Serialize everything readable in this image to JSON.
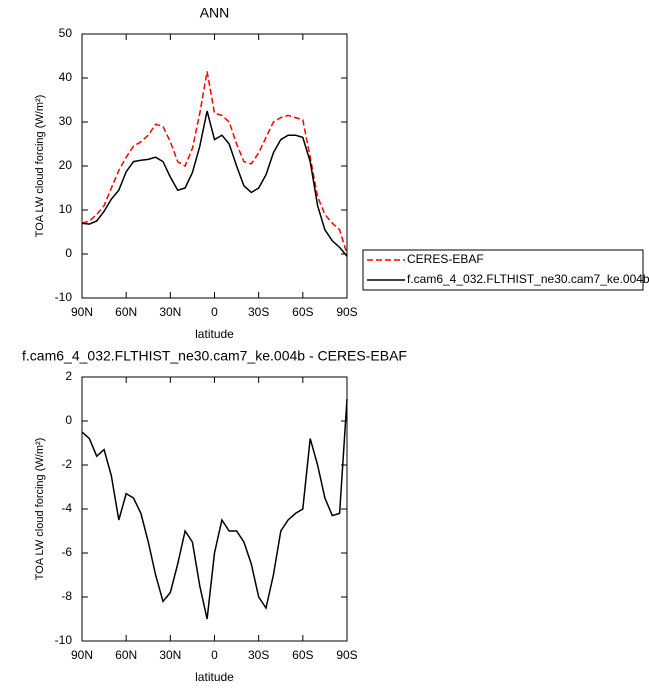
{
  "chart_data": [
    {
      "type": "line",
      "title": "ANN",
      "xlabel": "latitude",
      "ylabel": "TOA LW cloud forcing (W/m²)",
      "x": [
        90,
        85,
        80,
        75,
        70,
        65,
        60,
        55,
        50,
        45,
        40,
        35,
        30,
        25,
        20,
        15,
        10,
        5,
        0,
        -5,
        -10,
        -15,
        -20,
        -25,
        -30,
        -35,
        -40,
        -45,
        -50,
        -55,
        -60,
        -65,
        -70,
        -75,
        -80,
        -85,
        -90
      ],
      "series": [
        {
          "name": "CERES-EBAF",
          "color": "#ff0000",
          "dash": true,
          "values": [
            7,
            7.5,
            9,
            11,
            15,
            19,
            22,
            24.5,
            25.5,
            27,
            29.5,
            29,
            25.5,
            21,
            20,
            24,
            32,
            41.5,
            32,
            31.5,
            30,
            25,
            21,
            20.5,
            23,
            26.5,
            30,
            31,
            31.5,
            31,
            30.5,
            22,
            13,
            9,
            7,
            5.5,
            0
          ]
        },
        {
          "name": "f.cam6_4_032.FLTHIST_ne30.cam7_ke.004b",
          "color": "#000000",
          "dash": false,
          "values": [
            7,
            6.8,
            7.5,
            9.7,
            12.5,
            14.5,
            18.7,
            21,
            21.3,
            21.5,
            22,
            21,
            17.5,
            14.5,
            15,
            18.5,
            24.5,
            32.5,
            26,
            27,
            25,
            20,
            15.5,
            14,
            15,
            18,
            23,
            26,
            27,
            27,
            26.5,
            21,
            11,
            5.5,
            3,
            1.5,
            -0.5
          ]
        }
      ],
      "xlim": [
        90,
        -90
      ],
      "xticks": [
        {
          "value": 90,
          "label": "90N"
        },
        {
          "value": 60,
          "label": "60N"
        },
        {
          "value": 30,
          "label": "30N"
        },
        0,
        {
          "value": -30,
          "label": "30S"
        },
        {
          "value": -60,
          "label": "60S"
        },
        {
          "value": -90,
          "label": "90S"
        }
      ],
      "ylim": [
        -10,
        50
      ],
      "yticks": [
        -10,
        0,
        10,
        20,
        30,
        40,
        50
      ],
      "legend": "right"
    },
    {
      "type": "line",
      "title": "f.cam6_4_032.FLTHIST_ne30.cam7_ke.004b - CERES-EBAF",
      "xlabel": "latitude",
      "ylabel": "TOA LW cloud forcing (W/m²)",
      "x": [
        90,
        85,
        80,
        75,
        70,
        65,
        60,
        55,
        50,
        45,
        40,
        35,
        30,
        25,
        20,
        15,
        10,
        5,
        0,
        -5,
        -10,
        -15,
        -20,
        -25,
        -30,
        -35,
        -40,
        -45,
        -50,
        -55,
        -60,
        -65,
        -70,
        -75,
        -80,
        -85,
        -90
      ],
      "series": [
        {
          "color": "#000000",
          "dash": false,
          "values": [
            -0.5,
            -0.8,
            -1.6,
            -1.3,
            -2.5,
            -4.5,
            -3.3,
            -3.5,
            -4.2,
            -5.5,
            -7,
            -8.2,
            -7.8,
            -6.5,
            -5,
            -5.5,
            -7.5,
            -9,
            -6,
            -4.5,
            -5,
            -5,
            -5.5,
            -6.5,
            -8,
            -8.5,
            -7,
            -5,
            -4.5,
            -4.2,
            -4,
            -0.8,
            -2,
            -3.5,
            -4.3,
            -4.2,
            1
          ]
        }
      ],
      "xlim": [
        90,
        -90
      ],
      "xticks": [
        {
          "value": 90,
          "label": "90N"
        },
        {
          "value": 60,
          "label": "60N"
        },
        {
          "value": 30,
          "label": "30N"
        },
        0,
        {
          "value": -30,
          "label": "30S"
        },
        {
          "value": -60,
          "label": "60S"
        },
        {
          "value": -90,
          "label": "90S"
        }
      ],
      "ylim": [
        -10,
        2
      ],
      "yticks": [
        -10,
        -8,
        -6,
        -4,
        -2,
        0,
        2
      ]
    }
  ]
}
